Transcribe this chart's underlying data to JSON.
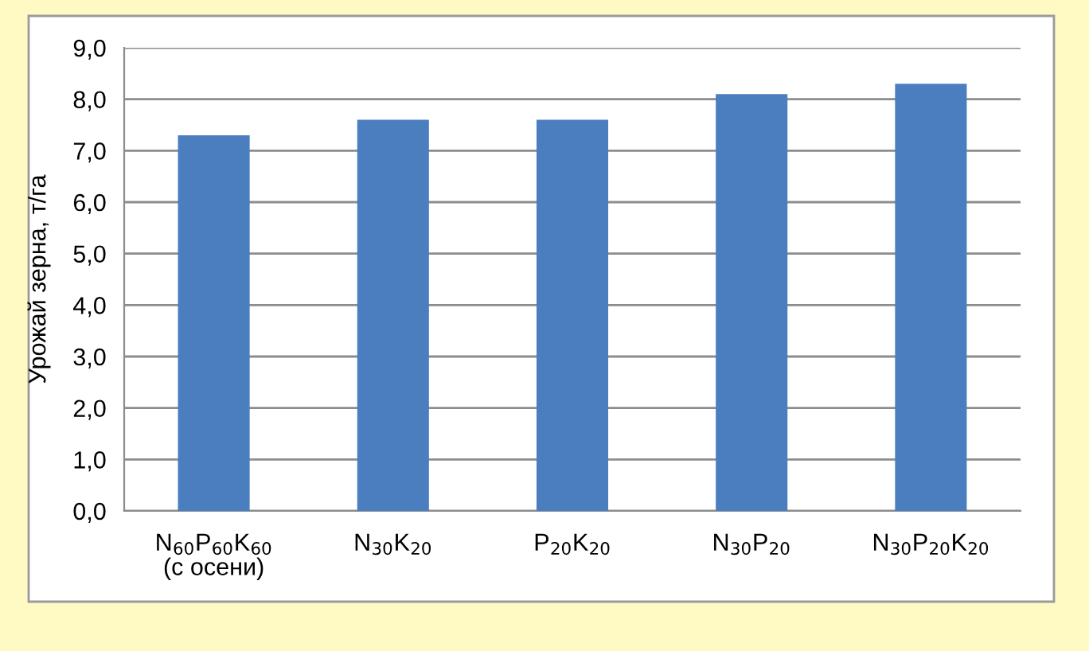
{
  "chart_data": {
    "type": "bar",
    "ylabel": "Урожай зерна, т/га",
    "categories": [
      "N$_{60}$P$_{60}$K$_{60}$\n(с осени)",
      "N$_{30}$K$_{20}$",
      "P$_{20}$K$_{20}$",
      "N$_{30}$P$_{20}$",
      "N$_{30}$P$_{20}$K$_{20}$"
    ],
    "values": [
      7.3,
      7.6,
      7.6,
      8.1,
      8.3
    ],
    "color": "#4a7ebf",
    "ylim": [
      0,
      9
    ],
    "yticks": [
      {
        "value": 0,
        "label": "0,0"
      },
      {
        "value": 1,
        "label": "1,0"
      },
      {
        "value": 2,
        "label": "2,0"
      },
      {
        "value": 3,
        "label": "3,0"
      },
      {
        "value": 4,
        "label": "4,0"
      },
      {
        "value": 5,
        "label": "5,0"
      },
      {
        "value": 6,
        "label": "6,0"
      },
      {
        "value": 7,
        "label": "7,0"
      },
      {
        "value": 8,
        "label": "8,0"
      },
      {
        "value": 9,
        "label": "9,0"
      }
    ],
    "grid": "y"
  }
}
